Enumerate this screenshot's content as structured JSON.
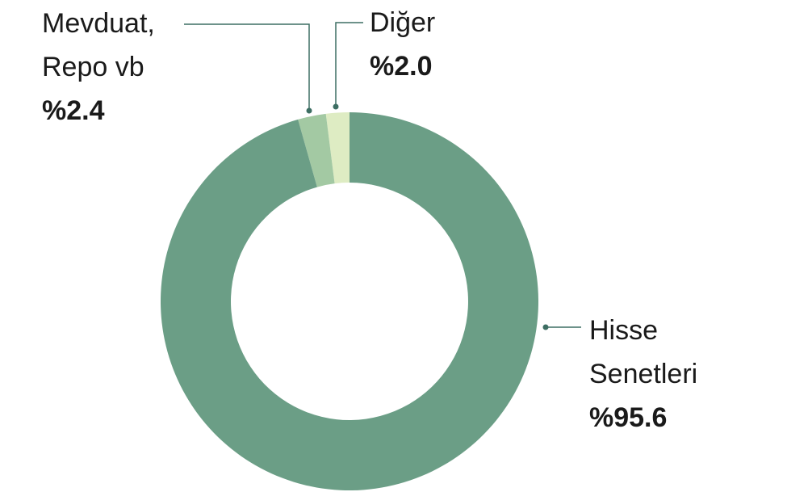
{
  "chart_data": {
    "type": "pie",
    "donut": true,
    "categories": [
      "Hisse Senetleri",
      "Mevduat, Repo vb",
      "Diğer"
    ],
    "values": [
      95.6,
      2.4,
      2.0
    ],
    "value_labels": [
      "%95.6",
      "%2.4",
      "%2.0"
    ],
    "colors": [
      "#6b9e86",
      "#a3c9a3",
      "#deecc3"
    ]
  }
}
